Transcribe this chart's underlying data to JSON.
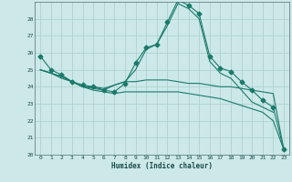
{
  "xlabel": "Humidex (Indice chaleur)",
  "bg_color": "#cce8e8",
  "grid_color": "#aacece",
  "line_color": "#1a7a6a",
  "xlim": [
    -0.5,
    23.5
  ],
  "ylim": [
    20,
    29
  ],
  "yticks": [
    20,
    21,
    22,
    23,
    24,
    25,
    26,
    27,
    28
  ],
  "xticks": [
    0,
    1,
    2,
    3,
    4,
    5,
    6,
    7,
    8,
    9,
    10,
    11,
    12,
    13,
    14,
    15,
    16,
    17,
    18,
    19,
    20,
    21,
    22,
    23
  ],
  "lines": [
    {
      "x": [
        0,
        1,
        2,
        3,
        4,
        5,
        6,
        7,
        8,
        9,
        10,
        11,
        12,
        13,
        14,
        15,
        16,
        17,
        18,
        19,
        20,
        21,
        22,
        23
      ],
      "y": [
        25.8,
        25.0,
        24.7,
        24.3,
        24.1,
        24.0,
        23.8,
        23.7,
        24.2,
        25.4,
        26.3,
        26.5,
        27.8,
        29.1,
        28.8,
        28.3,
        25.8,
        25.1,
        24.9,
        24.3,
        23.8,
        23.2,
        22.8,
        20.3
      ],
      "marker": "D",
      "markersize": 2.5
    },
    {
      "x": [
        0,
        1,
        2,
        3,
        4,
        5,
        6,
        7,
        8,
        9,
        10,
        11,
        12,
        13,
        14,
        15,
        16,
        17,
        18,
        19,
        20,
        21,
        22
      ],
      "y": [
        25.0,
        24.8,
        24.6,
        24.3,
        24.0,
        23.9,
        23.8,
        24.1,
        24.3,
        25.0,
        26.2,
        26.5,
        27.6,
        28.9,
        28.6,
        28.0,
        25.5,
        24.8,
        24.5,
        23.8,
        23.1,
        22.8,
        22.5
      ],
      "marker": null,
      "markersize": 0
    },
    {
      "x": [
        0,
        1,
        2,
        3,
        4,
        5,
        6,
        7,
        8,
        9,
        10,
        11,
        12,
        13,
        14,
        15,
        16,
        17,
        18,
        19,
        20,
        21,
        22,
        23
      ],
      "y": [
        25.0,
        24.8,
        24.6,
        24.3,
        24.0,
        24.0,
        23.9,
        24.1,
        24.3,
        24.3,
        24.4,
        24.4,
        24.4,
        24.3,
        24.2,
        24.2,
        24.1,
        24.0,
        24.0,
        23.9,
        23.8,
        23.7,
        23.6,
        20.3
      ],
      "marker": null,
      "markersize": 0
    },
    {
      "x": [
        0,
        1,
        2,
        3,
        4,
        5,
        6,
        7,
        8,
        9,
        10,
        11,
        12,
        13,
        14,
        15,
        16,
        17,
        18,
        19,
        20,
        21,
        22,
        23
      ],
      "y": [
        25.0,
        24.8,
        24.5,
        24.3,
        24.0,
        23.8,
        23.7,
        23.6,
        23.7,
        23.7,
        23.7,
        23.7,
        23.7,
        23.7,
        23.6,
        23.5,
        23.4,
        23.3,
        23.1,
        22.9,
        22.7,
        22.5,
        22.0,
        20.3
      ],
      "marker": null,
      "markersize": 0
    }
  ]
}
